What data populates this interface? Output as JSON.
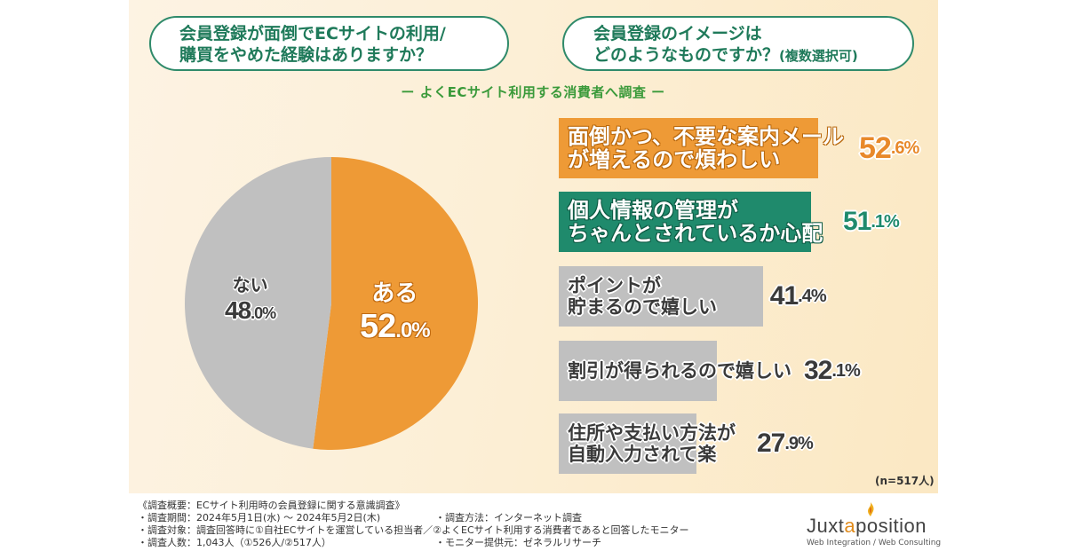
{
  "questions": {
    "left": {
      "line1": "会員登録が面倒でECサイトの利用/",
      "line2": "購買をやめた経験はありますか？"
    },
    "right": {
      "line1": "会員登録のイメージは",
      "line2": "どのようなものですか？",
      "note": "(複数選択可)"
    }
  },
  "subtitle": "ー よくECサイト利用する消費者へ調査 ー",
  "colors": {
    "orange": "#ee9a36",
    "green": "#1f8a6c",
    "gray": "#c0c0c0",
    "question_border": "#2f8a6a",
    "subtitle": "#3a9a3a"
  },
  "chart_data": [
    {
      "type": "pie",
      "title": "会員登録が面倒でECサイトの利用/購買をやめた経験はありますか？",
      "slices": [
        {
          "label": "ある",
          "value": 52.0,
          "int": "52",
          "dec": ".0%",
          "color": "#ee9a36"
        },
        {
          "label": "ない",
          "value": 48.0,
          "int": "48",
          "dec": ".0%",
          "color": "#c0c0c0"
        }
      ]
    },
    {
      "type": "bar",
      "orientation": "horizontal",
      "title": "会員登録のイメージはどのようなものですか？(複数選択可)",
      "xlim": [
        0,
        100
      ],
      "bars": [
        {
          "line1": "面倒かつ、不要な案内メール",
          "line2": "が増えるので煩わしい",
          "value": 52.6,
          "int": "52",
          "dec": ".6%",
          "color": "#ee9a36",
          "text_color": "#ffffff",
          "value_color": "#e8892a"
        },
        {
          "line1": "個人情報の管理が",
          "line2": "ちゃんとされているか心配",
          "value": 51.1,
          "int": "51",
          "dec": ".1%",
          "color": "#1f8a6c",
          "text_color": "#ffffff",
          "value_color": "#1f8a6c"
        },
        {
          "line1": "ポイントが",
          "line2": "貯まるので嬉しい",
          "value": 41.4,
          "int": "41",
          "dec": ".4%",
          "color": "#c0c0c0",
          "text_color": "#3a3a3a",
          "value_color": "#3a3a3a"
        },
        {
          "line1": "割引が得られるので嬉しい",
          "line2": "",
          "value": 32.1,
          "int": "32",
          "dec": ".1%",
          "color": "#c0c0c0",
          "text_color": "#3a3a3a",
          "value_color": "#3a3a3a"
        },
        {
          "line1": "住所や支払い方法が",
          "line2": "自動入力されて楽",
          "value": 27.9,
          "int": "27",
          "dec": ".9%",
          "color": "#c0c0c0",
          "text_color": "#3a3a3a",
          "value_color": "#3a3a3a"
        }
      ],
      "note": "(n=517人)"
    }
  ],
  "footer": {
    "left": [
      "《調査概要：ECサイト利用時の会員登録に関する意識調査》",
      "・調査期間：2024年5月1日(水) ～ 2024年5月2日(木)",
      "・調査対象：調査回答時に①自社ECサイトを運営している担当者／②よくECサイト利用する消費者であると回答したモニター",
      "・調査人数：1,043人（①526人/②517人）"
    ],
    "right": [
      "・調査方法：インターネット調査",
      "・モニター提供元：ゼネラルリサーチ"
    ]
  },
  "logo": {
    "name_pre": "Juxt",
    "name_accent": "a",
    "name_post": "position",
    "tagline": "Web Integration / Web Consulting"
  }
}
